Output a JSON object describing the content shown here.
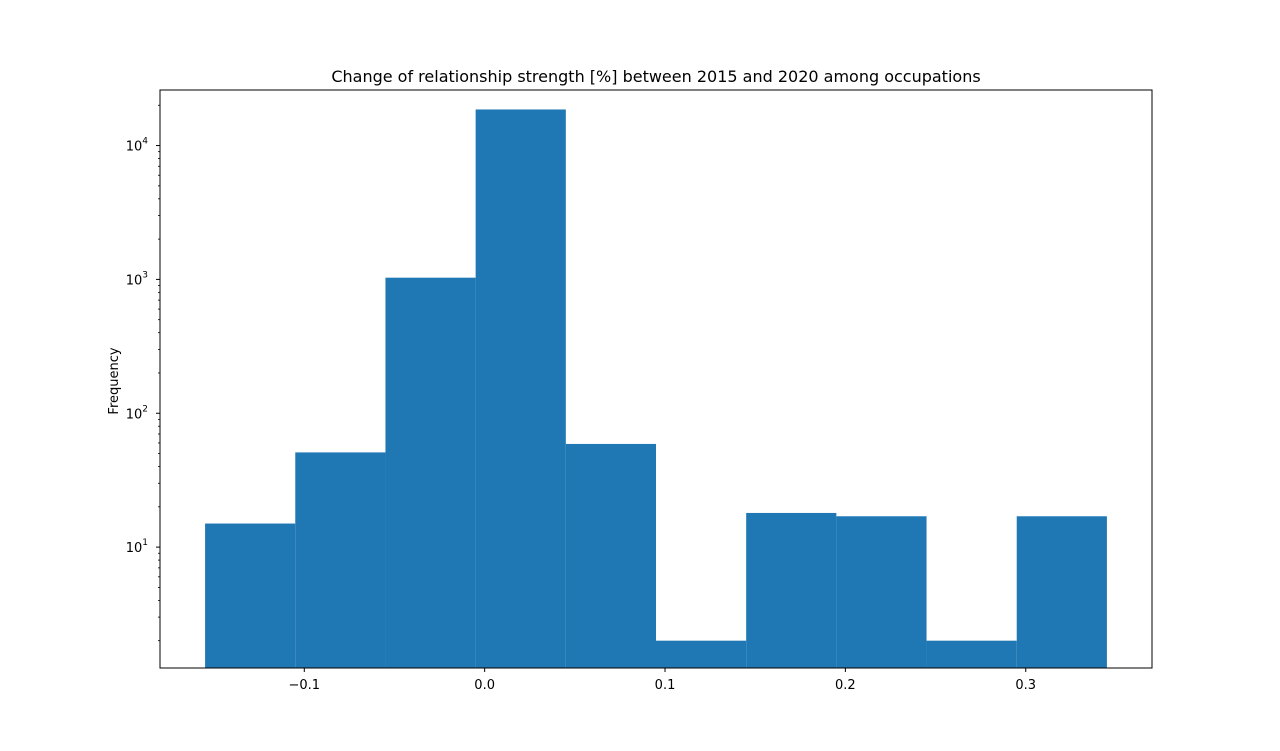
{
  "chart_data": {
    "type": "bar",
    "subtype": "histogram",
    "title": "Change of relationship strength [%] between 2015 and 2020 among occupations",
    "xlabel": "",
    "ylabel": "Frequency",
    "yscale": "log",
    "xlim": [
      -0.18,
      0.37
    ],
    "ylim": [
      1.25,
      26000
    ],
    "bins": [
      {
        "x0": -0.155,
        "x1": -0.105,
        "count": 15
      },
      {
        "x0": -0.105,
        "x1": -0.055,
        "count": 51
      },
      {
        "x0": -0.055,
        "x1": -0.005,
        "count": 1030
      },
      {
        "x0": -0.005,
        "x1": 0.045,
        "count": 18600
      },
      {
        "x0": 0.045,
        "x1": 0.095,
        "count": 59
      },
      {
        "x0": 0.095,
        "x1": 0.145,
        "count": 2
      },
      {
        "x0": 0.145,
        "x1": 0.195,
        "count": 18
      },
      {
        "x0": 0.195,
        "x1": 0.245,
        "count": 17
      },
      {
        "x0": 0.245,
        "x1": 0.295,
        "count": 2
      },
      {
        "x0": 0.295,
        "x1": 0.345,
        "count": 17
      }
    ],
    "bar_color": "#1f77b4",
    "xticks": [
      {
        "value": -0.1,
        "label": "−0.1"
      },
      {
        "value": 0.0,
        "label": "0.0"
      },
      {
        "value": 0.1,
        "label": "0.1"
      },
      {
        "value": 0.2,
        "label": "0.2"
      },
      {
        "value": 0.3,
        "label": "0.3"
      }
    ],
    "yticks": [
      {
        "value": 10,
        "base": "10",
        "exp": "1"
      },
      {
        "value": 100,
        "base": "10",
        "exp": "2"
      },
      {
        "value": 1000,
        "base": "10",
        "exp": "3"
      },
      {
        "value": 10000,
        "base": "10",
        "exp": "4"
      }
    ],
    "grid": false,
    "legend": "none"
  }
}
